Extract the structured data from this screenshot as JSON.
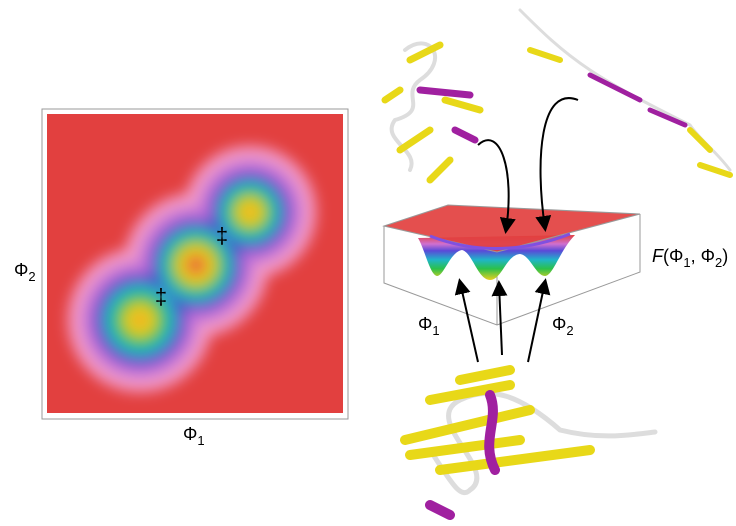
{
  "free_energy_map": {
    "x_label": {
      "symbol": "Φ",
      "subscript": "1"
    },
    "y_label": {
      "symbol": "Φ",
      "subscript": "2"
    },
    "transition_states": [
      "‡",
      "‡"
    ]
  },
  "landscape_3d": {
    "function_label": {
      "name": "F",
      "open": "(",
      "arg1": {
        "symbol": "Φ",
        "subscript": "1"
      },
      "separator": ", ",
      "arg2": {
        "symbol": "Φ",
        "subscript": "2"
      },
      "close": ")"
    },
    "axis1": {
      "symbol": "Φ",
      "subscript": "1"
    },
    "axis2": {
      "symbol": "Φ",
      "subscript": "2"
    }
  }
}
